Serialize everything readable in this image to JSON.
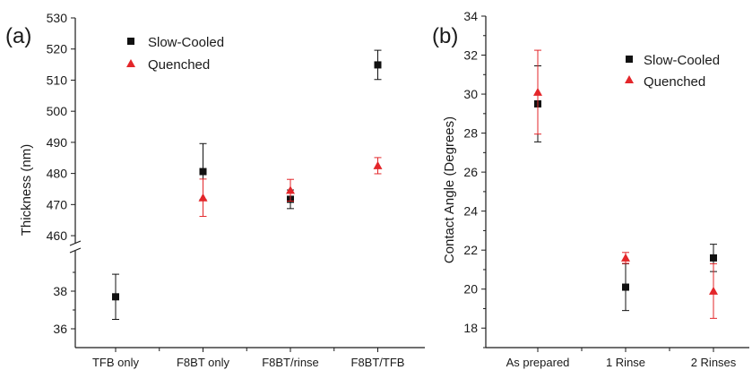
{
  "chart_data": [
    {
      "panel_label": "(a)",
      "type": "scatter",
      "categories": [
        "TFB only",
        "F8BT only",
        "F8BT/rinse",
        "F8BT/TFB"
      ],
      "ylabel": "Thickness (nm)",
      "y_axis_broken": true,
      "ylim_lower": [
        35,
        40
      ],
      "yticks_lower": [
        36,
        38
      ],
      "ylim_upper": [
        458,
        530
      ],
      "yticks_upper": [
        460,
        470,
        480,
        490,
        500,
        510,
        520,
        530
      ],
      "legend_position": "top-left",
      "series": [
        {
          "name": "Slow-Cooled",
          "marker": "square",
          "color": "#111111",
          "values": [
            37.7,
            480.6,
            471.7,
            514.9
          ],
          "errors": [
            1.2,
            9.0,
            3.0,
            4.7
          ]
        },
        {
          "name": "Quenched",
          "marker": "triangle",
          "color": "#e3262a",
          "values": [
            null,
            472.2,
            474.6,
            482.5
          ],
          "errors": [
            null,
            6.0,
            3.5,
            2.6
          ]
        }
      ]
    },
    {
      "panel_label": "(b)",
      "type": "scatter",
      "categories": [
        "As prepared",
        "1 Rinse",
        "2 Rinses"
      ],
      "ylabel": "Contact Angle (Degrees)",
      "ylim": [
        17,
        34
      ],
      "yticks": [
        18,
        20,
        22,
        24,
        26,
        28,
        30,
        32,
        34
      ],
      "legend_position": "top-right",
      "series": [
        {
          "name": "Slow-Cooled",
          "marker": "square",
          "color": "#111111",
          "values": [
            29.5,
            20.1,
            21.6
          ],
          "errors": [
            1.95,
            1.2,
            0.7
          ]
        },
        {
          "name": "Quenched",
          "marker": "triangle",
          "color": "#e3262a",
          "values": [
            30.1,
            21.6,
            19.9
          ],
          "errors": [
            2.15,
            0.28,
            1.4
          ]
        }
      ]
    }
  ]
}
